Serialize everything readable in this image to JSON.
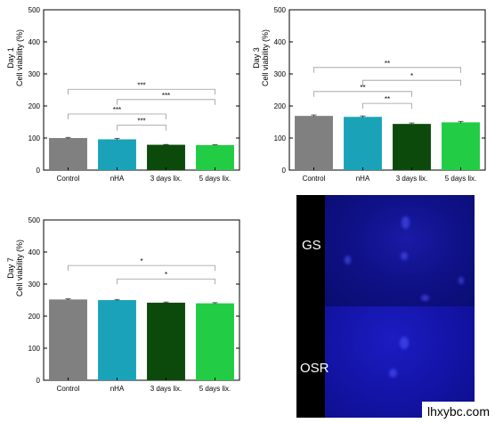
{
  "chart_data": [
    {
      "type": "bar",
      "panel_label": "Day 1",
      "ylabel": "Cell viability (%)",
      "categories": [
        "Control",
        "nHA",
        "3 days lix.",
        "5 days lix."
      ],
      "values": [
        100,
        96,
        79,
        78
      ],
      "errors": [
        2,
        3,
        1,
        1
      ],
      "yticks": [
        0,
        100,
        200,
        300,
        400,
        500
      ],
      "ylim": [
        0,
        500
      ],
      "significance": [
        {
          "from": 0,
          "to": 3,
          "label": "***",
          "y": 252
        },
        {
          "from": 1,
          "to": 3,
          "label": "***",
          "y": 220
        },
        {
          "from": 0,
          "to": 2,
          "label": "***",
          "y": 175
        },
        {
          "from": 1,
          "to": 2,
          "label": "***",
          "y": 140
        }
      ]
    },
    {
      "type": "bar",
      "panel_label": "Day 3",
      "ylabel": "Cell viability (%)",
      "categories": [
        "Control",
        "nHA",
        "3 days lix.",
        "5 days lix."
      ],
      "values": [
        169,
        166,
        144,
        149
      ],
      "errors": [
        3,
        3,
        3,
        3
      ],
      "yticks": [
        0,
        100,
        200,
        300,
        400,
        500
      ],
      "ylim": [
        0,
        500
      ],
      "significance": [
        {
          "from": 0,
          "to": 3,
          "label": "**",
          "y": 320
        },
        {
          "from": 1,
          "to": 3,
          "label": "*",
          "y": 280
        },
        {
          "from": 0,
          "to": 2,
          "label": "**",
          "y": 245
        },
        {
          "from": 1,
          "to": 2,
          "label": "**",
          "y": 208
        }
      ]
    },
    {
      "type": "bar",
      "panel_label": "Day 7",
      "ylabel": "Cell viability (%)",
      "categories": [
        "Control",
        "nHA",
        "3 days lix.",
        "5 days lix."
      ],
      "values": [
        252,
        250,
        242,
        240
      ],
      "errors": [
        2,
        2,
        2,
        2
      ],
      "yticks": [
        0,
        100,
        200,
        300,
        400,
        500
      ],
      "ylim": [
        0,
        500
      ],
      "significance": [
        {
          "from": 0,
          "to": 3,
          "label": "*",
          "y": 358
        },
        {
          "from": 1,
          "to": 3,
          "label": "*",
          "y": 316
        }
      ]
    }
  ],
  "bar_colors": [
    "#808080",
    "#1aa3b8",
    "#0c4a0c",
    "#22cc44"
  ],
  "micrograph": {
    "top_label": "GS",
    "bottom_label": "OSR"
  },
  "watermark": "lhxybc.com"
}
